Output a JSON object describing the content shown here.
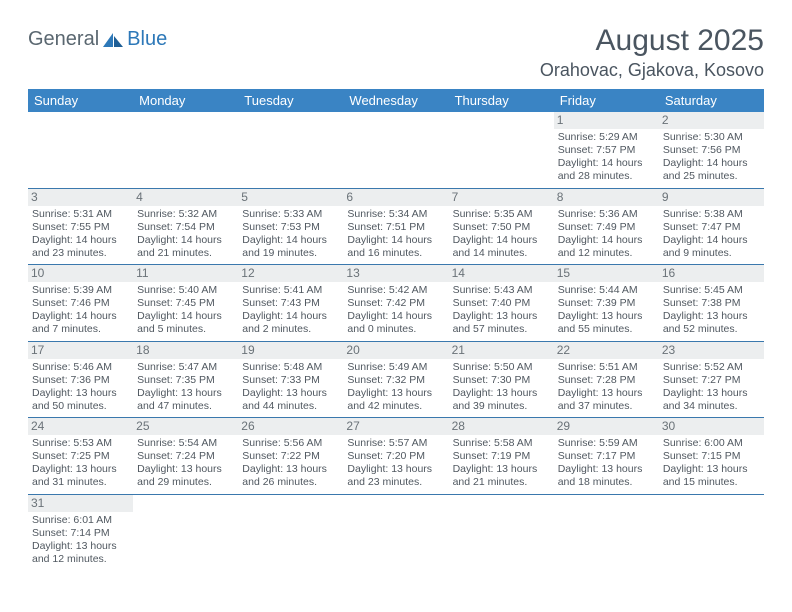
{
  "logo": {
    "text1": "General",
    "text2": "Blue"
  },
  "title": "August 2025",
  "location": "Orahovac, Gjakova, Kosovo",
  "colors": {
    "header_bg": "#3a84c4",
    "header_text": "#ffffff",
    "daynum_bg": "#eceeef",
    "row_border": "#3a78ad",
    "text": "#505860",
    "logo_gray": "#5a6770",
    "logo_blue": "#2d78b8"
  },
  "weekdays": [
    "Sunday",
    "Monday",
    "Tuesday",
    "Wednesday",
    "Thursday",
    "Friday",
    "Saturday"
  ],
  "weeks": [
    [
      null,
      null,
      null,
      null,
      null,
      {
        "n": "1",
        "sr": "Sunrise: 5:29 AM",
        "ss": "Sunset: 7:57 PM",
        "d1": "Daylight: 14 hours",
        "d2": "and 28 minutes."
      },
      {
        "n": "2",
        "sr": "Sunrise: 5:30 AM",
        "ss": "Sunset: 7:56 PM",
        "d1": "Daylight: 14 hours",
        "d2": "and 25 minutes."
      }
    ],
    [
      {
        "n": "3",
        "sr": "Sunrise: 5:31 AM",
        "ss": "Sunset: 7:55 PM",
        "d1": "Daylight: 14 hours",
        "d2": "and 23 minutes."
      },
      {
        "n": "4",
        "sr": "Sunrise: 5:32 AM",
        "ss": "Sunset: 7:54 PM",
        "d1": "Daylight: 14 hours",
        "d2": "and 21 minutes."
      },
      {
        "n": "5",
        "sr": "Sunrise: 5:33 AM",
        "ss": "Sunset: 7:53 PM",
        "d1": "Daylight: 14 hours",
        "d2": "and 19 minutes."
      },
      {
        "n": "6",
        "sr": "Sunrise: 5:34 AM",
        "ss": "Sunset: 7:51 PM",
        "d1": "Daylight: 14 hours",
        "d2": "and 16 minutes."
      },
      {
        "n": "7",
        "sr": "Sunrise: 5:35 AM",
        "ss": "Sunset: 7:50 PM",
        "d1": "Daylight: 14 hours",
        "d2": "and 14 minutes."
      },
      {
        "n": "8",
        "sr": "Sunrise: 5:36 AM",
        "ss": "Sunset: 7:49 PM",
        "d1": "Daylight: 14 hours",
        "d2": "and 12 minutes."
      },
      {
        "n": "9",
        "sr": "Sunrise: 5:38 AM",
        "ss": "Sunset: 7:47 PM",
        "d1": "Daylight: 14 hours",
        "d2": "and 9 minutes."
      }
    ],
    [
      {
        "n": "10",
        "sr": "Sunrise: 5:39 AM",
        "ss": "Sunset: 7:46 PM",
        "d1": "Daylight: 14 hours",
        "d2": "and 7 minutes."
      },
      {
        "n": "11",
        "sr": "Sunrise: 5:40 AM",
        "ss": "Sunset: 7:45 PM",
        "d1": "Daylight: 14 hours",
        "d2": "and 5 minutes."
      },
      {
        "n": "12",
        "sr": "Sunrise: 5:41 AM",
        "ss": "Sunset: 7:43 PM",
        "d1": "Daylight: 14 hours",
        "d2": "and 2 minutes."
      },
      {
        "n": "13",
        "sr": "Sunrise: 5:42 AM",
        "ss": "Sunset: 7:42 PM",
        "d1": "Daylight: 14 hours",
        "d2": "and 0 minutes."
      },
      {
        "n": "14",
        "sr": "Sunrise: 5:43 AM",
        "ss": "Sunset: 7:40 PM",
        "d1": "Daylight: 13 hours",
        "d2": "and 57 minutes."
      },
      {
        "n": "15",
        "sr": "Sunrise: 5:44 AM",
        "ss": "Sunset: 7:39 PM",
        "d1": "Daylight: 13 hours",
        "d2": "and 55 minutes."
      },
      {
        "n": "16",
        "sr": "Sunrise: 5:45 AM",
        "ss": "Sunset: 7:38 PM",
        "d1": "Daylight: 13 hours",
        "d2": "and 52 minutes."
      }
    ],
    [
      {
        "n": "17",
        "sr": "Sunrise: 5:46 AM",
        "ss": "Sunset: 7:36 PM",
        "d1": "Daylight: 13 hours",
        "d2": "and 50 minutes."
      },
      {
        "n": "18",
        "sr": "Sunrise: 5:47 AM",
        "ss": "Sunset: 7:35 PM",
        "d1": "Daylight: 13 hours",
        "d2": "and 47 minutes."
      },
      {
        "n": "19",
        "sr": "Sunrise: 5:48 AM",
        "ss": "Sunset: 7:33 PM",
        "d1": "Daylight: 13 hours",
        "d2": "and 44 minutes."
      },
      {
        "n": "20",
        "sr": "Sunrise: 5:49 AM",
        "ss": "Sunset: 7:32 PM",
        "d1": "Daylight: 13 hours",
        "d2": "and 42 minutes."
      },
      {
        "n": "21",
        "sr": "Sunrise: 5:50 AM",
        "ss": "Sunset: 7:30 PM",
        "d1": "Daylight: 13 hours",
        "d2": "and 39 minutes."
      },
      {
        "n": "22",
        "sr": "Sunrise: 5:51 AM",
        "ss": "Sunset: 7:28 PM",
        "d1": "Daylight: 13 hours",
        "d2": "and 37 minutes."
      },
      {
        "n": "23",
        "sr": "Sunrise: 5:52 AM",
        "ss": "Sunset: 7:27 PM",
        "d1": "Daylight: 13 hours",
        "d2": "and 34 minutes."
      }
    ],
    [
      {
        "n": "24",
        "sr": "Sunrise: 5:53 AM",
        "ss": "Sunset: 7:25 PM",
        "d1": "Daylight: 13 hours",
        "d2": "and 31 minutes."
      },
      {
        "n": "25",
        "sr": "Sunrise: 5:54 AM",
        "ss": "Sunset: 7:24 PM",
        "d1": "Daylight: 13 hours",
        "d2": "and 29 minutes."
      },
      {
        "n": "26",
        "sr": "Sunrise: 5:56 AM",
        "ss": "Sunset: 7:22 PM",
        "d1": "Daylight: 13 hours",
        "d2": "and 26 minutes."
      },
      {
        "n": "27",
        "sr": "Sunrise: 5:57 AM",
        "ss": "Sunset: 7:20 PM",
        "d1": "Daylight: 13 hours",
        "d2": "and 23 minutes."
      },
      {
        "n": "28",
        "sr": "Sunrise: 5:58 AM",
        "ss": "Sunset: 7:19 PM",
        "d1": "Daylight: 13 hours",
        "d2": "and 21 minutes."
      },
      {
        "n": "29",
        "sr": "Sunrise: 5:59 AM",
        "ss": "Sunset: 7:17 PM",
        "d1": "Daylight: 13 hours",
        "d2": "and 18 minutes."
      },
      {
        "n": "30",
        "sr": "Sunrise: 6:00 AM",
        "ss": "Sunset: 7:15 PM",
        "d1": "Daylight: 13 hours",
        "d2": "and 15 minutes."
      }
    ],
    [
      {
        "n": "31",
        "sr": "Sunrise: 6:01 AM",
        "ss": "Sunset: 7:14 PM",
        "d1": "Daylight: 13 hours",
        "d2": "and 12 minutes."
      },
      null,
      null,
      null,
      null,
      null,
      null
    ]
  ]
}
